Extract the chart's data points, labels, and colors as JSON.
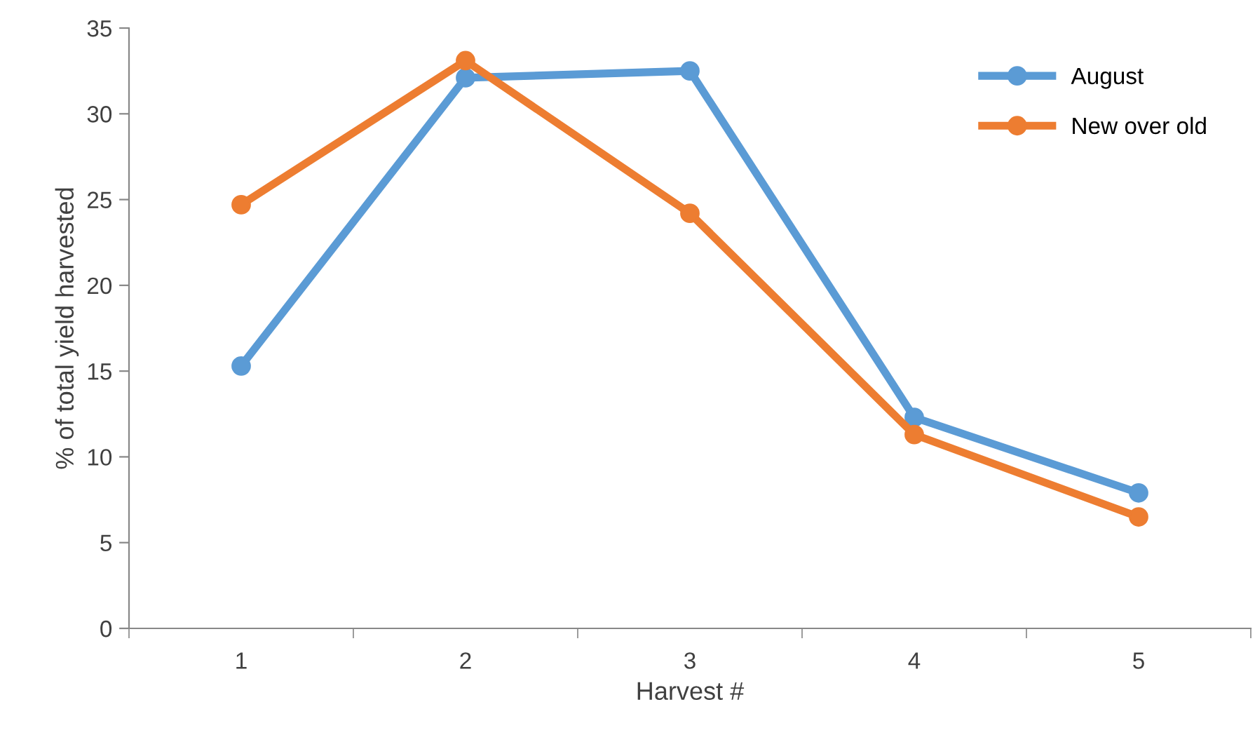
{
  "chart_data": {
    "type": "line",
    "xlabel": "Harvest #",
    "ylabel": "% of total yield harvested",
    "categories": [
      "1",
      "2",
      "3",
      "4",
      "5"
    ],
    "series": [
      {
        "name": "August",
        "color": "#5b9bd5",
        "values": [
          15.3,
          32.1,
          32.5,
          12.3,
          7.9
        ]
      },
      {
        "name": "New over old",
        "color": "#ed7d31",
        "values": [
          24.7,
          33.1,
          24.2,
          11.3,
          6.5
        ]
      }
    ],
    "ylim": [
      0,
      35
    ],
    "yticks": [
      0,
      5,
      10,
      15,
      20,
      25,
      30,
      35
    ],
    "grid": false,
    "legend": "top right",
    "marker": "circle",
    "line_style": "solid"
  }
}
